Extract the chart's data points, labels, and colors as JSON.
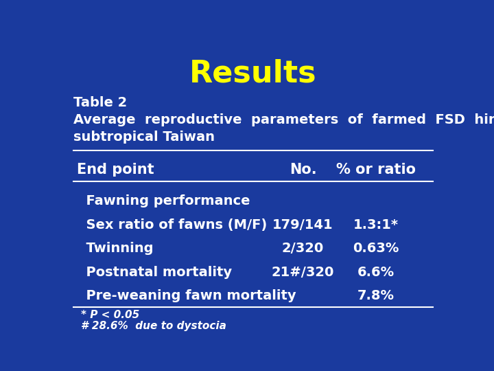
{
  "background_color": "#1a3a9e",
  "title": "Results",
  "title_color": "#ffff00",
  "title_fontsize": 32,
  "title_fontstyle": "bold",
  "table2_label": "Table 2",
  "subtitle_line1": "Average  reproductive  parameters  of  farmed  FSD  hinds  in",
  "subtitle_line2": "subtropical Taiwan",
  "text_color": "#ffffff",
  "subtitle_fontsize": 14,
  "table2_fontsize": 14,
  "col_headers": [
    "End point",
    "No.",
    "% or ratio"
  ],
  "col_header_fontsize": 15,
  "rows": [
    [
      "  Fawning performance",
      "",
      ""
    ],
    [
      "  Sex ratio of fawns (M/F)",
      "179/141",
      "1.3:1*"
    ],
    [
      "  Twinning",
      "2/320",
      "0.63%"
    ],
    [
      "  Postnatal mortality",
      "21#/320",
      "6.6%"
    ],
    [
      "  Pre-weaning fawn mortality",
      "",
      "7.8%"
    ]
  ],
  "row_fontsize": 14,
  "footnote_line1": "* P < 0.05",
  "footnote_line2": "# 28.6%  due to dystocia",
  "footnote_fontsize": 11,
  "line_color": "#ffffff"
}
